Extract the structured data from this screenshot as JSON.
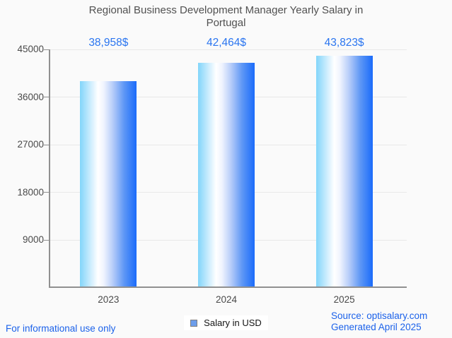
{
  "title": "Regional Business Development Manager Yearly Salary in Portugal",
  "legend": {
    "label": "Salary in USD"
  },
  "footer": {
    "disclaimer": "For informational use only",
    "source": "Source: optisalary.com",
    "generated": "Generated April 2025"
  },
  "colors": {
    "background": "#fafafa",
    "title_text": "#515151",
    "accent_value_blue": "#2a75f0",
    "link_blue": "#1c62ea",
    "axis_gray": "#909090",
    "grid_gray": "#e8e8e8",
    "bar_gradient_left": "#82d5fa",
    "bar_gradient_middle": "#ffffff",
    "bar_gradient_right": "#1a6bfa",
    "legend_marker_blue": "#6d9eeb"
  },
  "chart_data": {
    "type": "bar",
    "title": "Regional Business Development Manager Yearly Salary in Portugal",
    "categories": [
      "2023",
      "2024",
      "2025"
    ],
    "values": [
      38958,
      42464,
      43823
    ],
    "value_labels": [
      "38,958$",
      "42,464$",
      "43,823$"
    ],
    "series_name": "Salary in USD",
    "xlabel": "",
    "ylabel": "",
    "ylim": [
      0,
      45000
    ],
    "yticks": [
      9000,
      18000,
      27000,
      36000,
      45000
    ],
    "grid": true,
    "legend_position": "bottom"
  }
}
